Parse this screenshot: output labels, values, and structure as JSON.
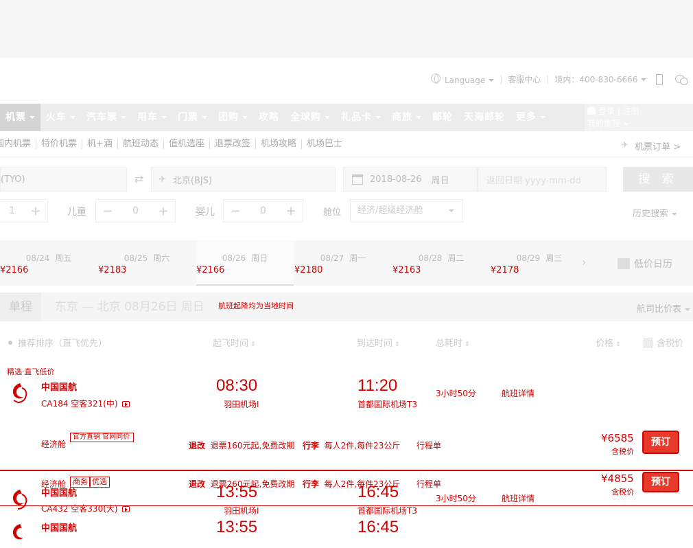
{
  "util": {
    "language": "Language",
    "service": "客服中心",
    "hotline": "境内：400-830-6666"
  },
  "nav": {
    "items": [
      {
        "label": "机票",
        "caret": true
      },
      {
        "label": "火车",
        "caret": true
      },
      {
        "label": "汽车票",
        "caret": true
      },
      {
        "label": "用车",
        "caret": true
      },
      {
        "label": "门票",
        "caret": true
      },
      {
        "label": "团购",
        "caret": true
      },
      {
        "label": "攻略",
        "caret": false
      },
      {
        "label": "全球购",
        "caret": true
      },
      {
        "label": "礼品卡",
        "caret": true
      },
      {
        "label": "商旅",
        "caret": true
      },
      {
        "label": "邮轮",
        "caret": false
      },
      {
        "label": "天海邮轮",
        "caret": false
      },
      {
        "label": "更多",
        "caret": true
      }
    ],
    "login": "登录",
    "register": "注册",
    "my_trips": "我的旅程"
  },
  "subnav": {
    "items": [
      "国内机票",
      "特价机票",
      "机+酒",
      "航班动态",
      "值机选座",
      "退票改签",
      "机场攻略",
      "机场巴士"
    ],
    "orders": "机票订单 >"
  },
  "search": {
    "from": "(TYO)",
    "to": "北京(BJS)",
    "date": "2018-08-26",
    "weekday": "周日",
    "return_placeholder": "返回日期 yyyy-mm-dd",
    "button": "搜 索",
    "adults": "1",
    "child_label": "儿童",
    "children": "0",
    "infant_label": "婴儿",
    "infants": "0",
    "cabin_label": "舱位",
    "cabin": "经济/超级经济舱",
    "history": "历史搜索"
  },
  "dates": [
    {
      "date": "08/24",
      "weekday": "周五",
      "price": "¥2166"
    },
    {
      "date": "08/25",
      "weekday": "周六",
      "price": "¥2183"
    },
    {
      "date": "08/26",
      "weekday": "周日",
      "price": "¥2166"
    },
    {
      "date": "08/27",
      "weekday": "周一",
      "price": "¥2180"
    },
    {
      "date": "08/28",
      "weekday": "周二",
      "price": "¥2163"
    },
    {
      "date": "08/29",
      "weekday": "周三",
      "price": "¥2178"
    }
  ],
  "low_calendar": "低价日历",
  "heading": {
    "oneway": "单程",
    "route": "东京 — 北京  08月26日 周日",
    "notice": "航班起降均为当地时间",
    "compare": "航司比价表"
  },
  "sort": {
    "recommend": "推荐排序（直飞优先）",
    "depart": "起飞时间",
    "arrive": "到达时间",
    "duration": "总耗时",
    "price": "价格",
    "tax": "含税价"
  },
  "flights": [
    {
      "tag": "精选·直飞低价",
      "airline": "中国国航",
      "flight_no": "CA184 空客321(中)",
      "dep_time": "08:30",
      "dep_airport": "羽田机场I",
      "arr_time": "11:20",
      "arr_airport": "首都国际机场T3",
      "duration": "3小时50分",
      "detail": "航班详情",
      "cabin": "经济舱",
      "seats": "官方直销 官网同价",
      "refund_label": "退改",
      "refund": "退票160元起,免费改期",
      "bag_label": "行李",
      "bag": "每人2件,每件23公斤",
      "itinerary": "行程单",
      "price": "¥6585",
      "tax": "含税价",
      "book": "预订"
    },
    {
      "airline": "中国国航",
      "flight_no": "CA432 空客330(大)",
      "dep_time": "13:55",
      "dep_airport": "羽田机场I",
      "arr_time": "16:45",
      "arr_airport": "首都国际机场T3",
      "duration": "3小时50分",
      "detail": "航班详情",
      "cabin": "经济舱",
      "tag1": "商务",
      "tag2": "优选",
      "refund_label": "退改",
      "refund": "退票260元起,免费改期",
      "bag_label": "行李",
      "bag": "每人2件,每件23公斤",
      "itinerary": "行程单",
      "price": "¥4855",
      "tax": "含税价",
      "book": "预订"
    },
    {
      "airline": "中国国航",
      "dep_time": "13:55",
      "arr_time": "16:45"
    }
  ],
  "colors": {
    "accent": "#d20000"
  }
}
